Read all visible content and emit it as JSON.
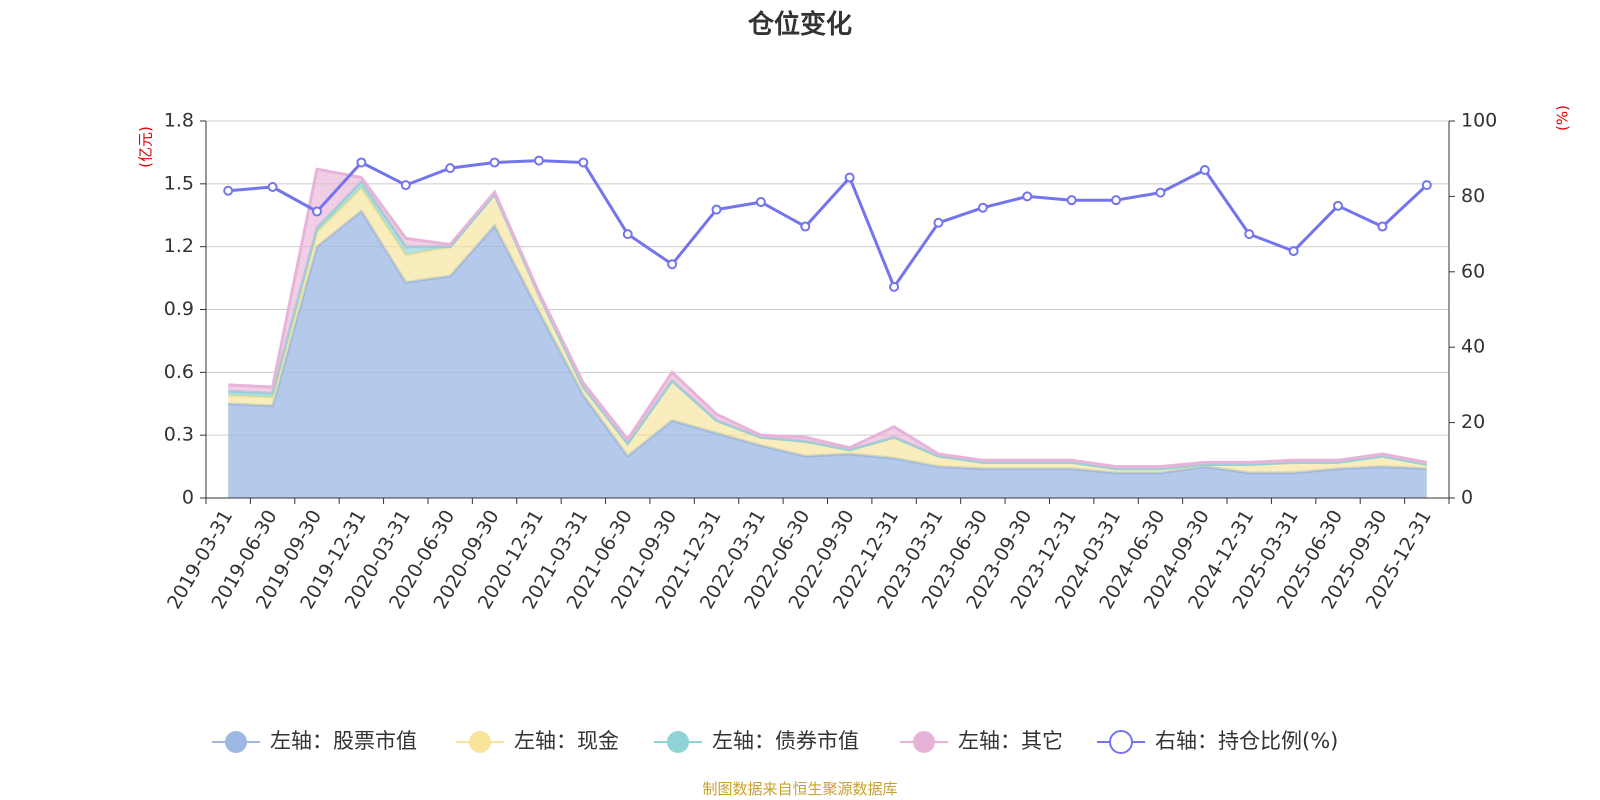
{
  "colors": {
    "stock": "#9cb8e3",
    "cash": "#f7e49a",
    "bond": "#8fd3d6",
    "other": "#e8b3d8",
    "ratio": "#7474ee",
    "grid": "#cccccc",
    "unit": "#e60000",
    "source": "#c8a030"
  },
  "chart_data": {
    "type": "area",
    "title": "仓位变化",
    "left_axis": {
      "unit": "(亿元)",
      "ylim": [
        0,
        1.8
      ],
      "ticks": [
        "0",
        "0.3",
        "0.6",
        "0.9",
        "1.2",
        "1.5",
        "1.8"
      ]
    },
    "right_axis": {
      "unit": "(%)",
      "ylim": [
        0,
        100
      ],
      "ticks": [
        "0",
        "20",
        "40",
        "60",
        "80",
        "100"
      ]
    },
    "categories": [
      "2019-03-31",
      "2019-06-30",
      "2019-09-30",
      "2019-12-31",
      "2020-03-31",
      "2020-06-30",
      "2020-09-30",
      "2020-12-31",
      "2021-03-31",
      "2021-06-30",
      "2021-09-30",
      "2021-12-31",
      "2022-03-31",
      "2022-06-30",
      "2022-09-30",
      "2022-12-31",
      "2023-03-31",
      "2023-06-30",
      "2023-09-30",
      "2023-12-31",
      "2024-03-31",
      "2024-06-30",
      "2024-09-30",
      "2024-12-31",
      "2025-03-31",
      "2025-06-30",
      "2025-09-30",
      "2025-12-31"
    ],
    "series": [
      {
        "name": "左轴：股票市值",
        "axis": "left",
        "kind": "stacked-area",
        "values": [
          0.45,
          0.44,
          1.2,
          1.37,
          1.03,
          1.06,
          1.3,
          0.89,
          0.49,
          0.2,
          0.37,
          0.31,
          0.25,
          0.2,
          0.21,
          0.19,
          0.15,
          0.14,
          0.14,
          0.14,
          0.12,
          0.12,
          0.15,
          0.12,
          0.12,
          0.14,
          0.15,
          0.14
        ]
      },
      {
        "name": "左轴：现金",
        "axis": "left",
        "kind": "stacked-area",
        "values": [
          0.04,
          0.04,
          0.07,
          0.11,
          0.13,
          0.14,
          0.15,
          0.08,
          0.04,
          0.06,
          0.19,
          0.06,
          0.04,
          0.07,
          0.02,
          0.1,
          0.05,
          0.03,
          0.03,
          0.03,
          0.02,
          0.02,
          0.01,
          0.04,
          0.05,
          0.03,
          0.05,
          0.02
        ]
      },
      {
        "name": "左轴：债券市值",
        "axis": "left",
        "kind": "stacked-area",
        "values": [
          0.02,
          0.02,
          0.02,
          0.03,
          0.04,
          0,
          0,
          0,
          0,
          0,
          0,
          0,
          0,
          0,
          0,
          0,
          0,
          0,
          0,
          0,
          0,
          0,
          0,
          0,
          0,
          0,
          0,
          0
        ]
      },
      {
        "name": "左轴：其它",
        "axis": "left",
        "kind": "stacked-area",
        "values": [
          0.03,
          0.03,
          0.28,
          0.02,
          0.04,
          0.01,
          0.01,
          0.01,
          0.02,
          0.02,
          0.04,
          0.03,
          0.01,
          0.02,
          0.01,
          0.05,
          0.01,
          0.01,
          0.01,
          0.01,
          0.01,
          0.01,
          0.01,
          0.01,
          0.01,
          0.01,
          0.01,
          0.01
        ]
      },
      {
        "name": "右轴：持仓比例(%)",
        "axis": "right",
        "kind": "line",
        "values": [
          81.5,
          82.5,
          76,
          89,
          83,
          87.5,
          89,
          89.5,
          89,
          70,
          62,
          76.5,
          78.5,
          72,
          85,
          56,
          73,
          77,
          80,
          79,
          79,
          81,
          87,
          70,
          65.5,
          77.5,
          72,
          83
        ]
      }
    ]
  },
  "source_note": "制图数据来自恒生聚源数据库"
}
